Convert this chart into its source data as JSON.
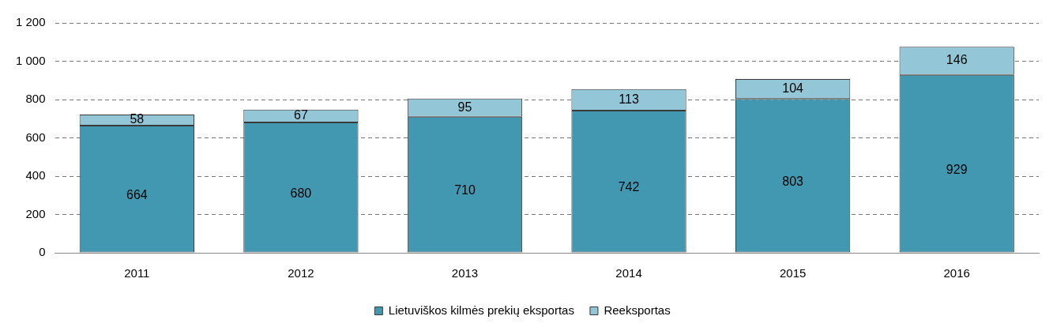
{
  "chart_data": {
    "type": "bar",
    "stacked": true,
    "categories": [
      "2011",
      "2012",
      "2013",
      "2014",
      "2015",
      "2016"
    ],
    "series": [
      {
        "name": "Lietuviškos kilmės prekių eksportas",
        "color": "#4398b1",
        "values": [
          664,
          680,
          710,
          742,
          803,
          929
        ]
      },
      {
        "name": "Reeksportas",
        "color": "#93c6d7",
        "values": [
          58,
          67,
          95,
          113,
          104,
          146
        ]
      }
    ],
    "ylim": [
      0,
      1200
    ],
    "yticks": [
      0,
      200,
      400,
      600,
      800,
      {
        "value": 1000,
        "label": "1 000"
      },
      {
        "value": 1200,
        "label": "1 200"
      }
    ],
    "grid": "y",
    "legend": "bottom",
    "data_labels": true
  }
}
